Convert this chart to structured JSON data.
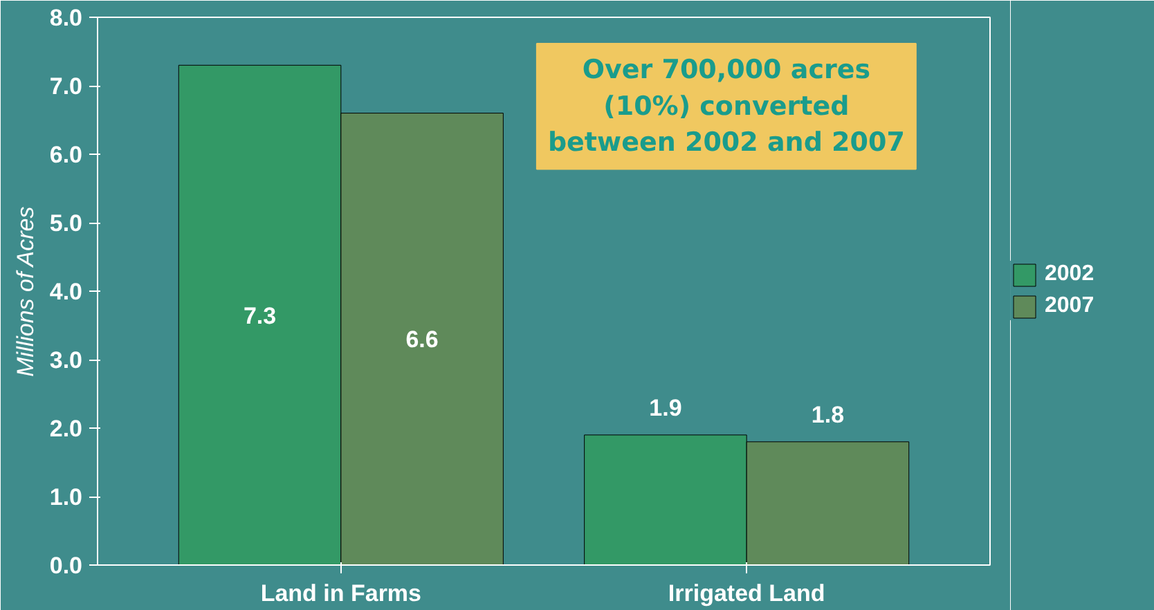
{
  "chart_data": {
    "type": "bar",
    "ylabel": "Millions of Acres",
    "categories": [
      "Land in Farms",
      "Irrigated Land"
    ],
    "series": [
      {
        "name": "2002",
        "color": "#339966",
        "values": [
          7.3,
          1.9
        ]
      },
      {
        "name": "2007",
        "color": "#5f8a5a",
        "values": [
          6.6,
          1.8
        ]
      }
    ],
    "ylim": [
      0,
      8
    ],
    "yticks": [
      {
        "value": 0,
        "label": "0.0"
      },
      {
        "value": 1,
        "label": "1.0"
      },
      {
        "value": 2,
        "label": "2.0"
      },
      {
        "value": 3,
        "label": "3.0"
      },
      {
        "value": 4,
        "label": "4.0"
      },
      {
        "value": 5,
        "label": "5.0"
      },
      {
        "value": 6,
        "label": "6.0"
      },
      {
        "value": 7,
        "label": "7.0"
      },
      {
        "value": 8,
        "label": "8.0"
      }
    ],
    "data_labels": true,
    "grid": false,
    "legend": "right",
    "annotations": [
      "Over 700,000 acres\n(10%) converted\nbetween 2002 and 2007"
    ]
  }
}
